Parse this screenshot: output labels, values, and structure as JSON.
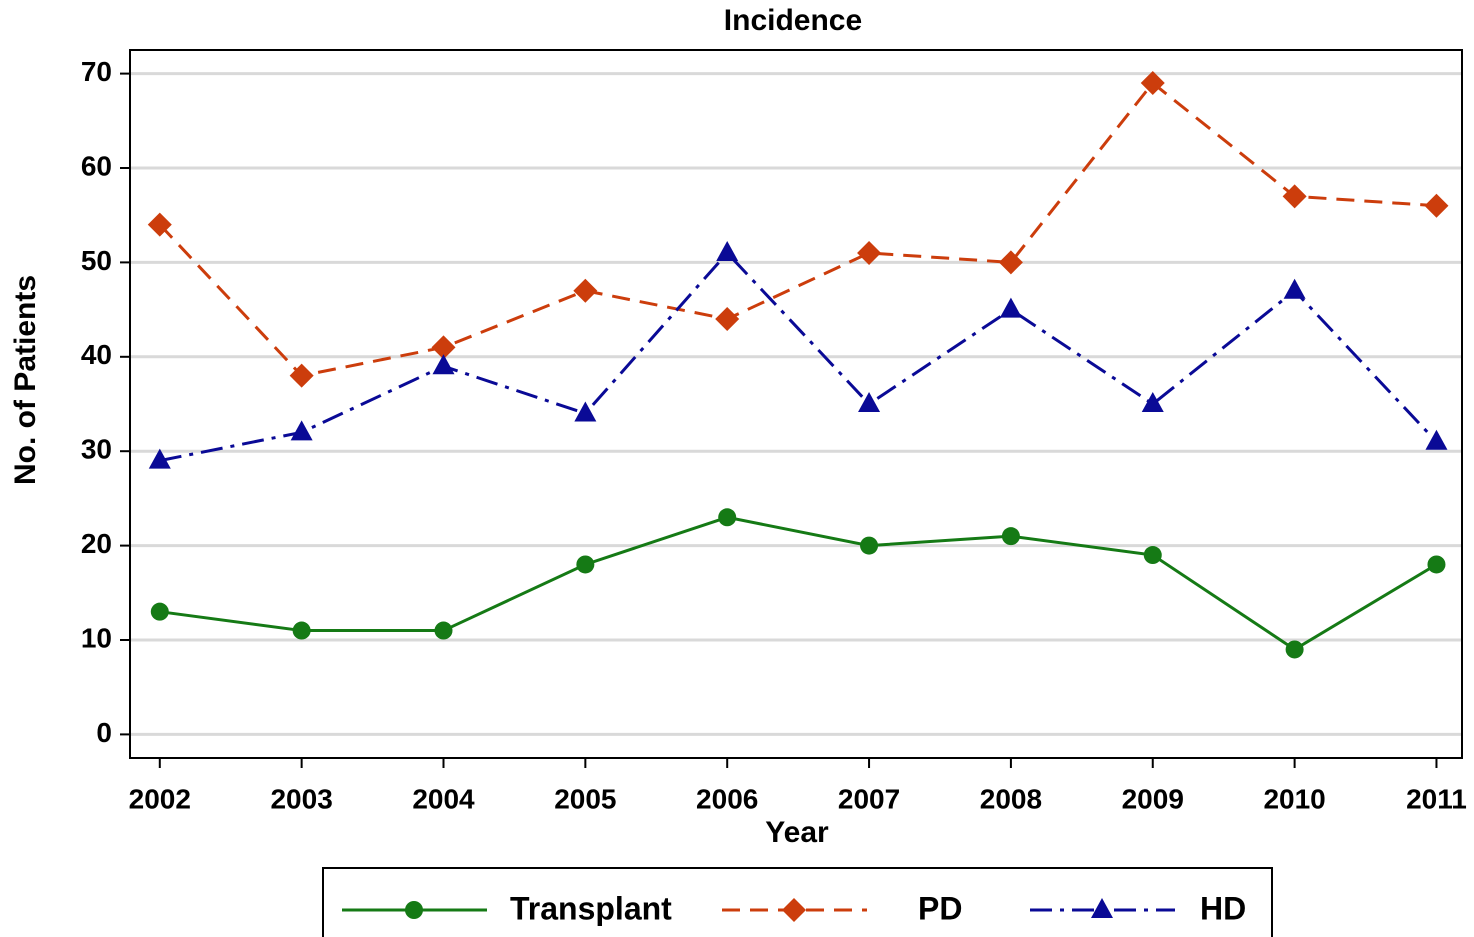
{
  "chart_data": {
    "type": "line",
    "title": "Incidence",
    "x_label": "Year",
    "y_label": "No. of Patients",
    "x": [
      2002,
      2003,
      2004,
      2005,
      2006,
      2007,
      2008,
      2009,
      2010,
      2011
    ],
    "series": [
      {
        "name": "Transplant",
        "color": "#157a15",
        "marker": "circle",
        "dash": "solid",
        "values": [
          13,
          11,
          11,
          18,
          23,
          20,
          21,
          19,
          9,
          18
        ]
      },
      {
        "name": "PD",
        "color": "#cc3d0c",
        "marker": "diamond",
        "dash": "dashed",
        "values": [
          54,
          38,
          41,
          47,
          44,
          51,
          50,
          69,
          57,
          56
        ]
      },
      {
        "name": "HD",
        "color": "#0a0a96",
        "marker": "triangle",
        "dash": "dashdot",
        "values": [
          29,
          32,
          39,
          34,
          51,
          35,
          45,
          35,
          47,
          31
        ]
      }
    ],
    "xlim": [
      2001.79,
      2011.18
    ],
    "xticks": [
      2002,
      2003,
      2004,
      2005,
      2006,
      2007,
      2008,
      2009,
      2010,
      2011
    ],
    "ylim": [
      -2.5,
      72.5
    ],
    "yticks": [
      0,
      10,
      20,
      30,
      40,
      50,
      60,
      70
    ],
    "grid": true,
    "legend": "bottom"
  }
}
